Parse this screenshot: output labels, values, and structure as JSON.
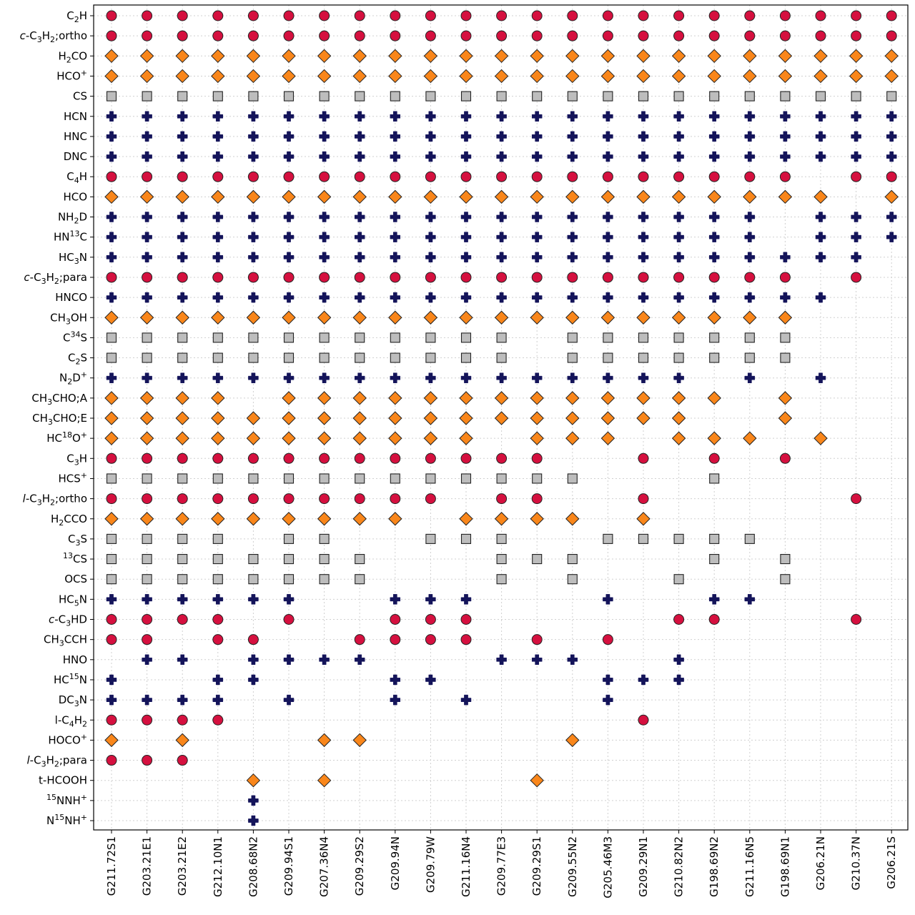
{
  "chart_data": {
    "type": "scatter",
    "title": "",
    "xlabel": "",
    "ylabel": "",
    "grid": true,
    "legend": "none",
    "colors": {
      "circle": "#d5103f",
      "diamond": "#f9861a",
      "square": "#bdbdbd",
      "plus": "#14145a",
      "edge": "#222222"
    },
    "categories": [
      "G211.72S1",
      "G203.21E1",
      "G203.21E2",
      "G212.10N1",
      "G208.68N2",
      "G209.94S1",
      "G207.36N4",
      "G209.29S2",
      "G209.94N",
      "G209.79W",
      "G211.16N4",
      "G209.77E3",
      "G209.29S1",
      "G209.55N2",
      "G205.46M3",
      "G209.29N1",
      "G210.82N2",
      "G198.69N2",
      "G211.16N5",
      "G198.69N1",
      "G206.21N",
      "G210.37N",
      "G206.21S"
    ],
    "series": [
      {
        "name": "C₂H",
        "marker": "circle",
        "present": [
          0,
          1,
          2,
          3,
          4,
          5,
          6,
          7,
          8,
          9,
          10,
          11,
          12,
          13,
          14,
          15,
          16,
          17,
          18,
          19,
          20,
          21,
          22
        ]
      },
      {
        "name": "c-C₃H₂;ortho",
        "marker": "circle",
        "present": [
          0,
          1,
          2,
          3,
          4,
          5,
          6,
          7,
          8,
          9,
          10,
          11,
          12,
          13,
          14,
          15,
          16,
          17,
          18,
          19,
          20,
          21,
          22
        ]
      },
      {
        "name": "H₂CO",
        "marker": "diamond",
        "present": [
          0,
          1,
          2,
          3,
          4,
          5,
          6,
          7,
          8,
          9,
          10,
          11,
          12,
          13,
          14,
          15,
          16,
          17,
          18,
          19,
          20,
          21,
          22
        ]
      },
      {
        "name": "HCO⁺",
        "marker": "diamond",
        "present": [
          0,
          1,
          2,
          3,
          4,
          5,
          6,
          7,
          8,
          9,
          10,
          11,
          12,
          13,
          14,
          15,
          16,
          17,
          18,
          19,
          20,
          21,
          22
        ]
      },
      {
        "name": "CS",
        "marker": "square",
        "present": [
          0,
          1,
          2,
          3,
          4,
          5,
          6,
          7,
          8,
          9,
          10,
          11,
          12,
          13,
          14,
          15,
          16,
          17,
          18,
          19,
          20,
          21,
          22
        ]
      },
      {
        "name": "HCN",
        "marker": "plus",
        "present": [
          0,
          1,
          2,
          3,
          4,
          5,
          6,
          7,
          8,
          9,
          10,
          11,
          12,
          13,
          14,
          15,
          16,
          17,
          18,
          19,
          20,
          21,
          22
        ]
      },
      {
        "name": "HNC",
        "marker": "plus",
        "present": [
          0,
          1,
          2,
          3,
          4,
          5,
          6,
          7,
          8,
          9,
          10,
          11,
          12,
          13,
          14,
          15,
          16,
          17,
          18,
          19,
          20,
          21,
          22
        ]
      },
      {
        "name": "DNC",
        "marker": "plus",
        "present": [
          0,
          1,
          2,
          3,
          4,
          5,
          6,
          7,
          8,
          9,
          10,
          11,
          12,
          13,
          14,
          15,
          16,
          17,
          18,
          19,
          20,
          21,
          22
        ]
      },
      {
        "name": "C₄H",
        "marker": "circle",
        "present": [
          0,
          1,
          2,
          3,
          4,
          5,
          6,
          7,
          8,
          9,
          10,
          11,
          12,
          13,
          14,
          15,
          16,
          17,
          18,
          19,
          21,
          22
        ]
      },
      {
        "name": "HCO",
        "marker": "diamond",
        "present": [
          0,
          1,
          2,
          3,
          4,
          5,
          6,
          7,
          8,
          9,
          10,
          11,
          12,
          13,
          14,
          15,
          16,
          17,
          18,
          19,
          20,
          22
        ]
      },
      {
        "name": "NH₂D",
        "marker": "plus",
        "present": [
          0,
          1,
          2,
          3,
          4,
          5,
          6,
          7,
          8,
          9,
          10,
          11,
          12,
          13,
          14,
          15,
          16,
          17,
          18,
          20,
          21,
          22
        ]
      },
      {
        "name": "HN¹³C",
        "marker": "plus",
        "present": [
          0,
          1,
          2,
          3,
          4,
          5,
          6,
          7,
          8,
          9,
          10,
          11,
          12,
          13,
          14,
          15,
          16,
          17,
          18,
          20,
          21,
          22
        ]
      },
      {
        "name": "HC₃N",
        "marker": "plus",
        "present": [
          0,
          1,
          2,
          3,
          4,
          5,
          6,
          7,
          8,
          9,
          10,
          11,
          12,
          13,
          14,
          15,
          16,
          17,
          18,
          19,
          20,
          21
        ]
      },
      {
        "name": "c-C₃H₂;para",
        "marker": "circle",
        "present": [
          0,
          1,
          2,
          3,
          4,
          5,
          6,
          7,
          8,
          9,
          10,
          11,
          12,
          13,
          14,
          15,
          16,
          17,
          18,
          19,
          21
        ]
      },
      {
        "name": "HNCO",
        "marker": "plus",
        "present": [
          0,
          1,
          2,
          3,
          4,
          5,
          6,
          7,
          8,
          9,
          10,
          11,
          12,
          13,
          14,
          15,
          16,
          17,
          18,
          19,
          20
        ]
      },
      {
        "name": "CH₃OH",
        "marker": "diamond",
        "present": [
          0,
          1,
          2,
          3,
          4,
          5,
          6,
          7,
          8,
          9,
          10,
          11,
          12,
          13,
          14,
          15,
          16,
          17,
          18,
          19
        ]
      },
      {
        "name": "C³⁴S",
        "marker": "square",
        "present": [
          0,
          1,
          2,
          3,
          4,
          5,
          6,
          7,
          8,
          9,
          10,
          11,
          13,
          14,
          15,
          16,
          17,
          18,
          19
        ]
      },
      {
        "name": "C₂S",
        "marker": "square",
        "present": [
          0,
          1,
          2,
          3,
          4,
          5,
          6,
          7,
          8,
          9,
          10,
          11,
          13,
          14,
          15,
          16,
          17,
          18,
          19
        ]
      },
      {
        "name": "N₂D⁺",
        "marker": "plus",
        "present": [
          0,
          1,
          2,
          3,
          4,
          5,
          6,
          7,
          8,
          9,
          10,
          11,
          12,
          13,
          14,
          15,
          16,
          18,
          20
        ]
      },
      {
        "name": "CH₃CHO;A",
        "marker": "diamond",
        "present": [
          0,
          1,
          2,
          3,
          5,
          6,
          7,
          8,
          9,
          10,
          11,
          12,
          13,
          14,
          15,
          16,
          17,
          19
        ]
      },
      {
        "name": "CH₃CHO;E",
        "marker": "diamond",
        "present": [
          0,
          1,
          2,
          3,
          4,
          5,
          6,
          7,
          8,
          9,
          10,
          11,
          12,
          13,
          14,
          15,
          16,
          19
        ]
      },
      {
        "name": "HC¹⁸O⁺",
        "marker": "diamond",
        "present": [
          0,
          1,
          2,
          3,
          4,
          5,
          6,
          7,
          8,
          9,
          10,
          12,
          13,
          14,
          16,
          17,
          18,
          20
        ]
      },
      {
        "name": "C₃H",
        "marker": "circle",
        "present": [
          0,
          1,
          2,
          3,
          4,
          5,
          6,
          7,
          8,
          9,
          10,
          11,
          12,
          15,
          17,
          19
        ]
      },
      {
        "name": "HCS⁺",
        "marker": "square",
        "present": [
          0,
          1,
          2,
          3,
          4,
          5,
          6,
          7,
          8,
          9,
          10,
          11,
          12,
          13,
          17
        ]
      },
      {
        "name": "l-C₃H₂;ortho",
        "marker": "circle",
        "present": [
          0,
          1,
          2,
          3,
          4,
          5,
          6,
          7,
          8,
          9,
          11,
          12,
          15,
          21
        ]
      },
      {
        "name": "H₂CCO",
        "marker": "diamond",
        "present": [
          0,
          1,
          2,
          3,
          4,
          5,
          6,
          7,
          8,
          10,
          11,
          12,
          13,
          15
        ]
      },
      {
        "name": "C₃S",
        "marker": "square",
        "present": [
          0,
          1,
          2,
          3,
          5,
          6,
          9,
          10,
          11,
          14,
          15,
          16,
          17,
          18
        ]
      },
      {
        "name": "¹³CS",
        "marker": "square",
        "present": [
          0,
          1,
          2,
          3,
          4,
          5,
          6,
          7,
          11,
          12,
          13,
          17,
          19
        ]
      },
      {
        "name": "OCS",
        "marker": "square",
        "present": [
          0,
          1,
          2,
          3,
          4,
          5,
          6,
          7,
          11,
          13,
          16,
          19
        ]
      },
      {
        "name": "HC₅N",
        "marker": "plus",
        "present": [
          0,
          1,
          2,
          3,
          4,
          5,
          8,
          9,
          10,
          14,
          17,
          18
        ]
      },
      {
        "name": "c-C₃HD",
        "marker": "circle",
        "present": [
          0,
          1,
          2,
          3,
          5,
          8,
          9,
          10,
          16,
          17,
          21
        ]
      },
      {
        "name": "CH₃CCH",
        "marker": "circle",
        "present": [
          0,
          1,
          3,
          4,
          7,
          8,
          9,
          10,
          12,
          14
        ]
      },
      {
        "name": "HNO",
        "marker": "plus",
        "present": [
          1,
          2,
          4,
          5,
          6,
          7,
          11,
          12,
          13,
          16
        ]
      },
      {
        "name": "HC¹⁵N",
        "marker": "plus",
        "present": [
          0,
          3,
          4,
          8,
          9,
          14,
          15,
          16
        ]
      },
      {
        "name": "DC₃N",
        "marker": "plus",
        "present": [
          0,
          1,
          2,
          3,
          5,
          8,
          10,
          14
        ]
      },
      {
        "name": "l-C₄H₂",
        "marker": "circle",
        "present": [
          0,
          1,
          2,
          3,
          15
        ]
      },
      {
        "name": "HOCO⁺",
        "marker": "diamond",
        "present": [
          0,
          2,
          6,
          7,
          13
        ]
      },
      {
        "name": "l-C₃H₂;para",
        "marker": "circle",
        "present": [
          0,
          1,
          2
        ]
      },
      {
        "name": "t-HCOOH",
        "marker": "diamond",
        "present": [
          4,
          6,
          12
        ]
      },
      {
        "name": "¹⁵NNH⁺",
        "marker": "plus",
        "present": [
          4
        ]
      },
      {
        "name": "N¹⁵NH⁺",
        "marker": "plus",
        "present": [
          4
        ]
      }
    ]
  }
}
